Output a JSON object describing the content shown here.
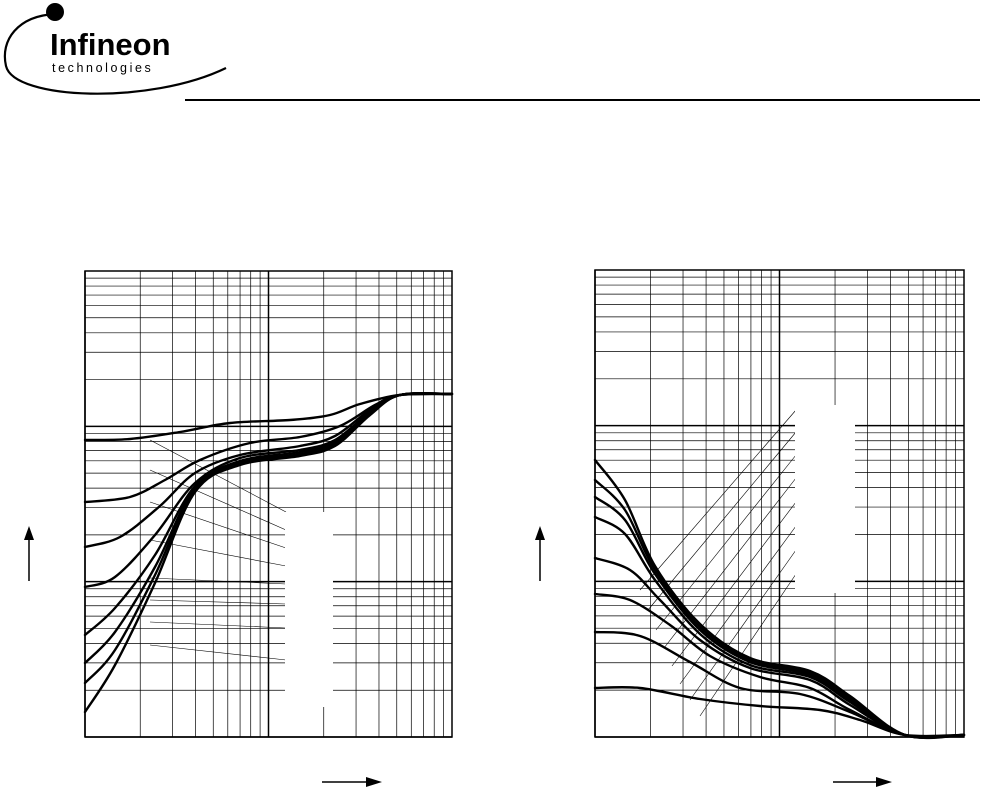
{
  "brand": {
    "name": "Infineon",
    "tagline": "technologies"
  },
  "colors": {
    "ink": "#000000",
    "paper": "#ffffff"
  },
  "chart_data": [
    {
      "type": "line",
      "x_scale": "log",
      "y_scale": "log",
      "x_decades": 2,
      "y_decades": 3,
      "curve_count": 8,
      "legend": "center-right label box (labels unreadable)",
      "grid": true
    },
    {
      "type": "line",
      "x_scale": "log",
      "y_scale": "log",
      "x_decades": 2,
      "y_decades": 3,
      "curve_count": 8,
      "legend": "center label box (labels unreadable)",
      "grid": true
    }
  ]
}
